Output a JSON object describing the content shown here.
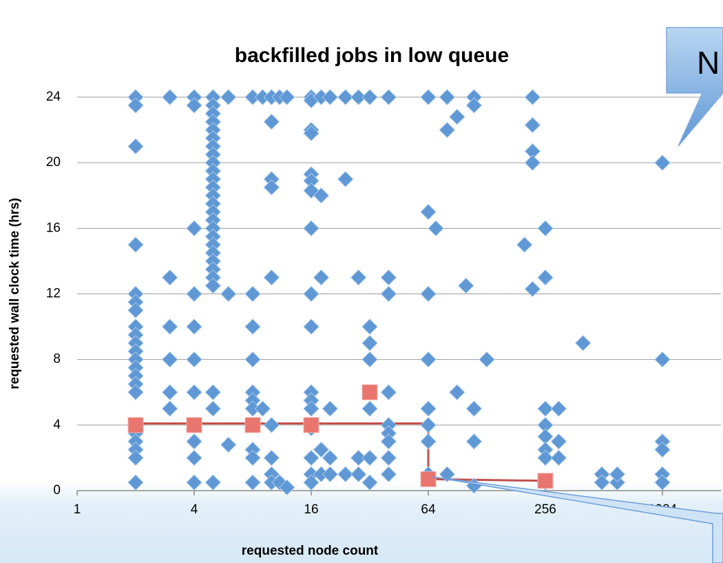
{
  "chart_data": {
    "type": "scatter",
    "title": "backfilled jobs in low queue",
    "x_label": "requested node count",
    "y_label": "requested wall clock time  (hrs)",
    "callout_text": "N",
    "x_scale": "log2",
    "xlim": [
      1,
      2048
    ],
    "ylim": [
      0,
      24
    ],
    "xticks": [
      1,
      4,
      16,
      64,
      256,
      1024
    ],
    "yticks": [
      0,
      4,
      8,
      12,
      16,
      20,
      24
    ],
    "grid": true,
    "series": [
      {
        "marker": "diamond",
        "color": "#5f98d4",
        "x": [
          2,
          2,
          2,
          2,
          2,
          2,
          2,
          2,
          2,
          2,
          2,
          2,
          2,
          2,
          2,
          2,
          2,
          2,
          2,
          2,
          2,
          2,
          3,
          3,
          3,
          3,
          3,
          3,
          4,
          4,
          4,
          4,
          4,
          4,
          4,
          4,
          4,
          4,
          4,
          5,
          5,
          5,
          5,
          5,
          5,
          5,
          5,
          5,
          5,
          5,
          5,
          5,
          5,
          5,
          5,
          5,
          5,
          5,
          5,
          5,
          5,
          5,
          5,
          5,
          5,
          5,
          6,
          6,
          6,
          8,
          8,
          8,
          8,
          8,
          8,
          8,
          8,
          8,
          8,
          9,
          9,
          10,
          10,
          10,
          10,
          10,
          10,
          10,
          10,
          10,
          11,
          11,
          12,
          12,
          16,
          16,
          16,
          16,
          16,
          16,
          16,
          16,
          16,
          16,
          16,
          16,
          16,
          16,
          16,
          16,
          16,
          16,
          18,
          18,
          18,
          18,
          18,
          20,
          20,
          20,
          20,
          24,
          24,
          24,
          28,
          28,
          28,
          28,
          32,
          32,
          32,
          32,
          32,
          32,
          32,
          40,
          40,
          40,
          40,
          40,
          40,
          40,
          40,
          40,
          64,
          64,
          64,
          64,
          64,
          64,
          64,
          64,
          70,
          80,
          80,
          80,
          90,
          90,
          100,
          110,
          110,
          110,
          110,
          110,
          128,
          200,
          220,
          220,
          220,
          220,
          220,
          256,
          256,
          256,
          256,
          256,
          256,
          256,
          256,
          300,
          300,
          300,
          400,
          500,
          500,
          600,
          600,
          1024,
          1024,
          1024,
          1024,
          1024,
          1024
        ],
        "values": [
          24,
          23.5,
          21,
          15,
          12,
          11.5,
          11,
          10,
          9.5,
          9,
          8.5,
          8,
          7.5,
          7,
          6.5,
          6,
          4,
          3.5,
          3,
          2.5,
          2,
          0.5,
          24,
          13,
          10,
          8,
          6,
          5,
          24,
          23.5,
          16,
          12,
          10,
          8,
          6,
          4,
          3,
          2,
          0.5,
          24,
          23.5,
          23,
          22.5,
          22,
          21.5,
          21,
          20.5,
          20,
          19.5,
          19,
          18.5,
          18,
          17.5,
          17,
          16.5,
          16,
          15.5,
          15,
          14.5,
          14,
          13.5,
          13,
          12.5,
          6,
          5,
          0.5,
          24,
          12,
          2.8,
          24,
          12,
          10,
          8,
          6,
          5.5,
          5,
          2.5,
          2,
          0.5,
          24,
          5,
          24,
          22.5,
          19,
          18.5,
          13,
          4,
          2,
          1,
          0.5,
          24,
          0.5,
          24,
          0.2,
          24,
          23.8,
          22,
          21.8,
          19.3,
          18.9,
          18.3,
          16,
          12,
          10,
          6,
          5.5,
          5,
          4,
          3.8,
          2,
          1,
          0.5,
          24,
          18,
          13,
          2.5,
          1,
          24,
          5,
          2,
          1,
          24,
          19,
          1,
          24,
          13,
          2,
          1,
          24,
          10,
          9,
          8,
          5,
          2,
          0.5,
          24,
          13,
          12,
          6,
          4,
          3.5,
          3,
          2,
          1,
          24,
          17,
          12,
          8,
          5,
          4,
          3,
          1,
          16,
          24,
          22,
          1,
          22.8,
          6,
          12.5,
          24,
          23.5,
          5,
          3,
          0.3,
          8,
          15,
          24,
          22.3,
          20.7,
          20,
          12.3,
          16,
          13,
          5,
          4,
          3.3,
          2.5,
          2,
          0.5,
          5,
          3,
          2,
          9,
          1,
          0.5,
          0.5,
          1,
          20,
          8,
          3,
          2.5,
          1,
          0.5
        ]
      },
      {
        "marker": "square",
        "color": "#e8756e",
        "x": [
          2,
          4,
          8,
          16,
          32,
          64,
          256
        ],
        "values": [
          4,
          4,
          4,
          4,
          6,
          0.7,
          0.6
        ]
      },
      {
        "marker": "line",
        "color": "#c0504d",
        "x": [
          2,
          64,
          64,
          256
        ],
        "values": [
          4.1,
          4.1,
          0.7,
          0.6
        ]
      }
    ]
  }
}
